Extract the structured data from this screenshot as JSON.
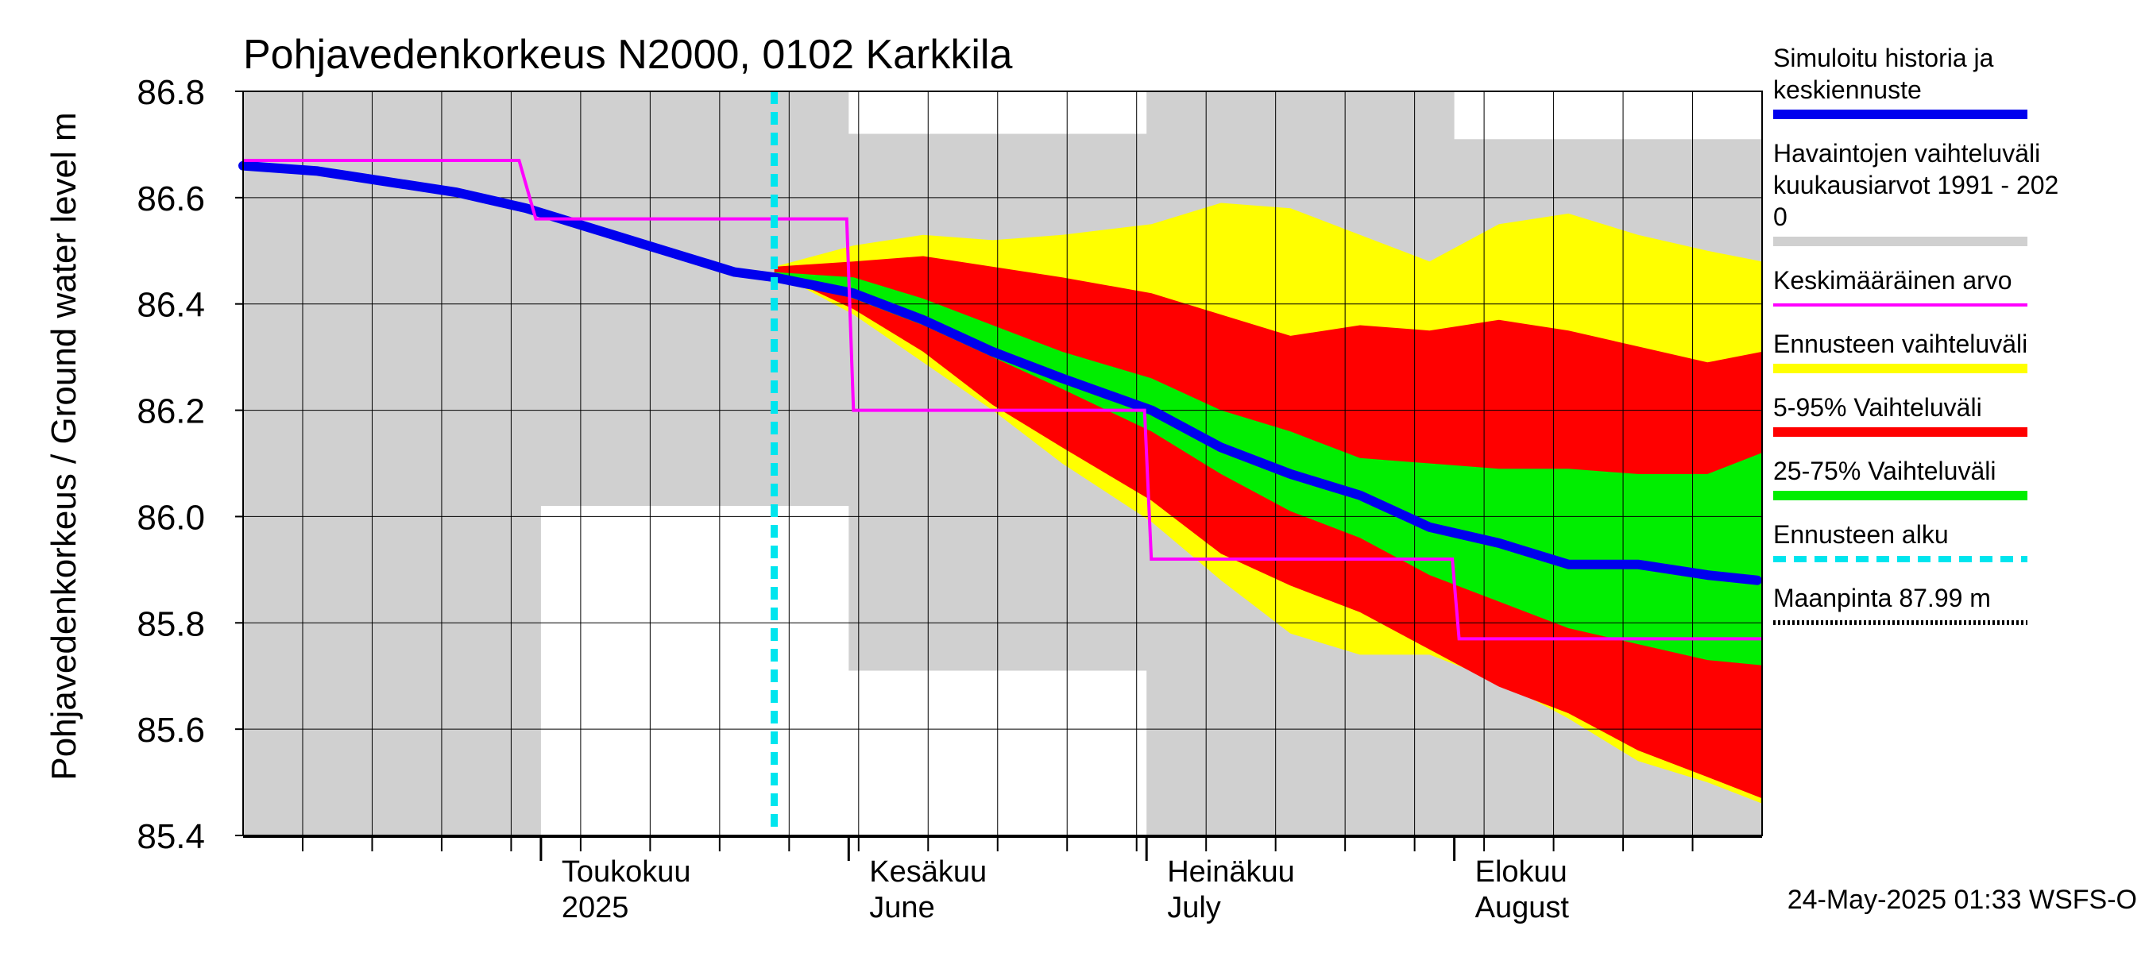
{
  "chart_data": {
    "type": "area",
    "title": "Pohjavedenkorkeus N2000, 0102 Karkkila",
    "ylabel": "Pohjavedenkorkeus / Ground water level   m",
    "ylim": [
      85.4,
      86.8
    ],
    "y_ticks": [
      "86.8",
      "86.6",
      "86.4",
      "86.2",
      "86.0",
      "85.8",
      "85.6",
      "85.4"
    ],
    "x_range": [
      "2025-04-01",
      "2025-08-31"
    ],
    "month_labels": [
      {
        "date": "2025-05-01",
        "line1": "Toukokuu",
        "line2": "2025"
      },
      {
        "date": "2025-06-01",
        "line1": "Kesäkuu",
        "line2": "June"
      },
      {
        "date": "2025-07-01",
        "line1": "Heinäkuu",
        "line2": "July"
      },
      {
        "date": "2025-08-01",
        "line1": "Elokuu",
        "line2": "August"
      }
    ],
    "grid": true,
    "footer": "24-May-2025 01:33 WSFS-O",
    "forecast_start": "2025-05-24",
    "series": [
      {
        "name": "Havaintojen vaihteluväli kuukausiarvot 1991 - 2020",
        "kind": "band",
        "color": "#d0d0d0",
        "x": [
          "2025-04-01",
          "2025-04-30",
          "2025-05-01",
          "2025-05-31",
          "2025-06-01",
          "2025-06-30",
          "2025-07-01",
          "2025-07-31",
          "2025-08-01",
          "2025-08-31"
        ],
        "upper": [
          86.8,
          86.8,
          86.8,
          86.8,
          86.72,
          86.72,
          86.8,
          86.8,
          86.71,
          86.71
        ],
        "lower": [
          85.4,
          85.4,
          86.02,
          86.02,
          85.71,
          85.71,
          85.4,
          85.4,
          85.4,
          85.4
        ]
      },
      {
        "name": "Ennusteen vaihteluväli",
        "kind": "band",
        "color": "#ffff00",
        "x": [
          "2025-05-24",
          "2025-06-01",
          "2025-06-08",
          "2025-06-15",
          "2025-06-22",
          "2025-07-01",
          "2025-07-08",
          "2025-07-15",
          "2025-07-22",
          "2025-07-29",
          "2025-08-05",
          "2025-08-12",
          "2025-08-19",
          "2025-08-26",
          "2025-08-31"
        ],
        "upper": [
          86.47,
          86.51,
          86.53,
          86.52,
          86.53,
          86.55,
          86.59,
          86.58,
          86.53,
          86.48,
          86.55,
          86.57,
          86.53,
          86.5,
          86.48
        ],
        "lower": [
          86.46,
          86.38,
          86.29,
          86.2,
          86.1,
          85.99,
          85.88,
          85.78,
          85.74,
          85.74,
          85.69,
          85.62,
          85.54,
          85.5,
          85.46
        ]
      },
      {
        "name": "5-95% Vaihteluväli",
        "kind": "band",
        "color": "#ff0000",
        "x": [
          "2025-05-24",
          "2025-06-01",
          "2025-06-08",
          "2025-06-15",
          "2025-06-22",
          "2025-07-01",
          "2025-07-08",
          "2025-07-15",
          "2025-07-22",
          "2025-07-29",
          "2025-08-05",
          "2025-08-12",
          "2025-08-19",
          "2025-08-26",
          "2025-08-31"
        ],
        "upper": [
          86.47,
          86.48,
          86.49,
          86.47,
          86.45,
          86.42,
          86.38,
          86.34,
          86.36,
          86.35,
          86.37,
          86.35,
          86.32,
          86.29,
          86.31
        ],
        "lower": [
          86.46,
          86.39,
          86.31,
          86.21,
          86.13,
          86.03,
          85.93,
          85.87,
          85.82,
          85.75,
          85.68,
          85.63,
          85.56,
          85.51,
          85.47
        ]
      },
      {
        "name": "25-75% Vaihteluväli",
        "kind": "band",
        "color": "#00ee00",
        "x": [
          "2025-05-24",
          "2025-06-01",
          "2025-06-08",
          "2025-06-15",
          "2025-06-22",
          "2025-07-01",
          "2025-07-08",
          "2025-07-15",
          "2025-07-22",
          "2025-07-29",
          "2025-08-05",
          "2025-08-12",
          "2025-08-19",
          "2025-08-26",
          "2025-08-31"
        ],
        "upper": [
          86.46,
          86.45,
          86.41,
          86.36,
          86.31,
          86.26,
          86.2,
          86.16,
          86.11,
          86.1,
          86.09,
          86.09,
          86.08,
          86.08,
          86.12
        ],
        "lower": [
          86.45,
          86.41,
          86.36,
          86.3,
          86.24,
          86.16,
          86.08,
          86.01,
          85.96,
          85.89,
          85.84,
          85.79,
          85.76,
          85.73,
          85.72
        ]
      },
      {
        "name": "Simuloitu historia ja keskiennuste",
        "kind": "line",
        "color": "#0000ee",
        "x": [
          "2025-04-01",
          "2025-04-08",
          "2025-04-15",
          "2025-04-22",
          "2025-04-29",
          "2025-05-06",
          "2025-05-13",
          "2025-05-20",
          "2025-05-24",
          "2025-06-01",
          "2025-06-08",
          "2025-06-15",
          "2025-06-22",
          "2025-07-01",
          "2025-07-08",
          "2025-07-15",
          "2025-07-22",
          "2025-07-29",
          "2025-08-05",
          "2025-08-12",
          "2025-08-19",
          "2025-08-26",
          "2025-08-31"
        ],
        "y": [
          86.66,
          86.65,
          86.63,
          86.61,
          86.58,
          86.54,
          86.5,
          86.46,
          86.45,
          86.42,
          86.37,
          86.31,
          86.26,
          86.2,
          86.13,
          86.08,
          86.04,
          85.98,
          85.95,
          85.91,
          85.91,
          85.89,
          85.88
        ]
      },
      {
        "name": "Keskimääräinen arvo",
        "kind": "step",
        "color": "#ff00ff",
        "x": [
          "2025-04-01",
          "2025-04-28",
          "2025-04-30",
          "2025-05-31",
          "2025-06-01",
          "2025-06-30",
          "2025-07-01",
          "2025-07-31",
          "2025-08-01",
          "2025-08-31"
        ],
        "y": [
          86.67,
          86.67,
          86.56,
          86.56,
          86.2,
          86.2,
          85.92,
          85.92,
          85.77,
          85.77
        ]
      }
    ]
  },
  "legend": {
    "items": [
      {
        "label": "Simuloitu historia ja\nkeskiennuste",
        "color": "#0000ee",
        "style": "thick"
      },
      {
        "label": "Havaintojen vaihteluväli\n kuukausiarvot 1991 - 202\n0",
        "color": "#d0d0d0",
        "style": "thick"
      },
      {
        "label": "Keskimääräinen arvo",
        "color": "#ff00ff",
        "style": "thin"
      },
      {
        "label": "Ennusteen vaihteluväli",
        "color": "#ffff00",
        "style": "thick"
      },
      {
        "label": "5-95% Vaihteluväli",
        "color": "#ff0000",
        "style": "thick"
      },
      {
        "label": "25-75% Vaihteluväli",
        "color": "#00ee00",
        "style": "thick"
      },
      {
        "label": "Ennusteen alku",
        "color": "#00e5ee",
        "style": "dashed"
      },
      {
        "label": "Maanpinta 87.99 m",
        "color": "#000000",
        "style": "dotted"
      }
    ]
  }
}
